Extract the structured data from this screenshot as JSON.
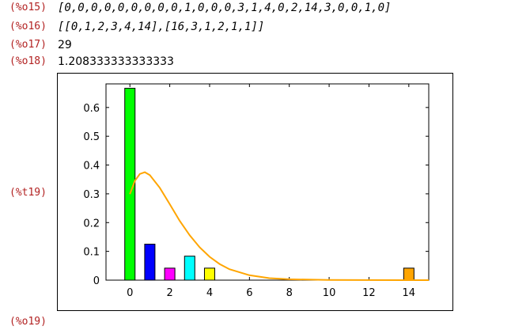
{
  "outputs": [
    {
      "label": "(%o15)",
      "text": "[0,0,0,0,0,0,0,0,0,1,0,0,0,3,1,4,0,2,14,3,0,0,1,0]",
      "style": "list"
    },
    {
      "label": "(%o16)",
      "text": "[[0,1,2,3,4,14],[16,3,1,2,1,1]]",
      "style": "list"
    },
    {
      "label": "(%o17)",
      "text": "29",
      "style": "number"
    },
    {
      "label": "(%o18)",
      "text": "1.208333333333333",
      "style": "number"
    }
  ],
  "plot_label": "(%t19)",
  "next_label": "(%o19)",
  "colors": {
    "label": "#b22222",
    "curve": "#ffa500"
  },
  "chart_data": {
    "type": "bar",
    "title": "",
    "xlabel": "",
    "ylabel": "",
    "x": [
      0,
      1,
      2,
      3,
      4,
      14
    ],
    "values": [
      0.6667,
      0.125,
      0.0417,
      0.0833,
      0.0417,
      0.0417
    ],
    "bar_colors": [
      "#00ff00",
      "#0000ff",
      "#ff00ff",
      "#00ffff",
      "#ffff00",
      "#ffa500"
    ],
    "xlim": [
      -1.2,
      15
    ],
    "ylim": [
      0,
      0.66
    ],
    "xticks": [
      "0",
      "2",
      "4",
      "6",
      "8",
      "10",
      "12",
      "14"
    ],
    "yticks": [
      "0",
      "0.1",
      "0.2",
      "0.3",
      "0.4",
      "0.5",
      "0.6"
    ],
    "grid": false,
    "curve": {
      "x": [
        0,
        0.25,
        0.5,
        0.75,
        1,
        1.5,
        2,
        2.5,
        3,
        3.5,
        4,
        4.5,
        5,
        6,
        7,
        8,
        10,
        15
      ],
      "y": [
        0.299,
        0.345,
        0.369,
        0.375,
        0.365,
        0.321,
        0.264,
        0.206,
        0.156,
        0.114,
        0.081,
        0.056,
        0.038,
        0.017,
        0.007,
        0.003,
        0.0005,
        0.0
      ]
    }
  }
}
